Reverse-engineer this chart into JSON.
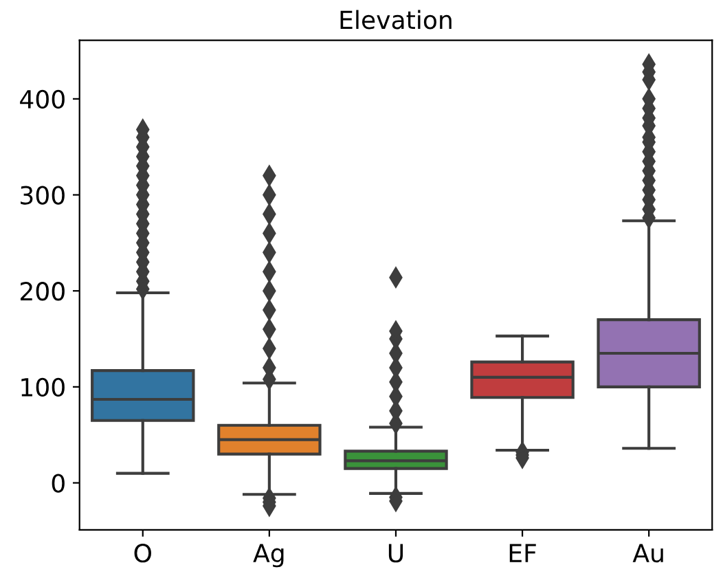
{
  "chart_data": {
    "type": "box",
    "title": "Elevation",
    "categories": [
      "O",
      "Ag",
      "U",
      "EF",
      "Au"
    ],
    "colors": [
      "#3274a1",
      "#e1812c",
      "#3a923a",
      "#c03d3e",
      "#9372b2"
    ],
    "boxes": [
      {
        "low": 10,
        "q1": 65,
        "median": 87,
        "q3": 117,
        "high": 198,
        "outliers": [
          202,
          210,
          220,
          230,
          240,
          250,
          260,
          270,
          280,
          290,
          300,
          310,
          320,
          330,
          340,
          350,
          360,
          368
        ]
      },
      {
        "low": -12,
        "q1": 30,
        "median": 45,
        "q3": 60,
        "high": 104,
        "outliers": [
          -16,
          -20,
          -24,
          108,
          120,
          140,
          160,
          180,
          200,
          220,
          240,
          260,
          280,
          300,
          320
        ]
      },
      {
        "low": -11,
        "q1": 15,
        "median": 23,
        "q3": 33,
        "high": 58,
        "outliers": [
          -15,
          -19,
          62,
          75,
          90,
          105,
          120,
          135,
          150,
          158,
          214
        ]
      },
      {
        "low": 34,
        "q1": 89,
        "median": 110,
        "q3": 126,
        "high": 153,
        "outliers": [
          32,
          29,
          26
        ]
      },
      {
        "low": 36,
        "q1": 100,
        "median": 135,
        "q3": 170,
        "high": 273,
        "outliers": [
          276,
          285,
          295,
          305,
          315,
          325,
          335,
          345,
          355,
          360,
          372,
          380,
          390,
          400,
          420,
          428,
          436
        ]
      }
    ],
    "ylim": [
      -49,
      461
    ],
    "yticks": [
      0,
      100,
      200,
      300,
      400
    ],
    "marker": "diamond",
    "grid": false
  }
}
